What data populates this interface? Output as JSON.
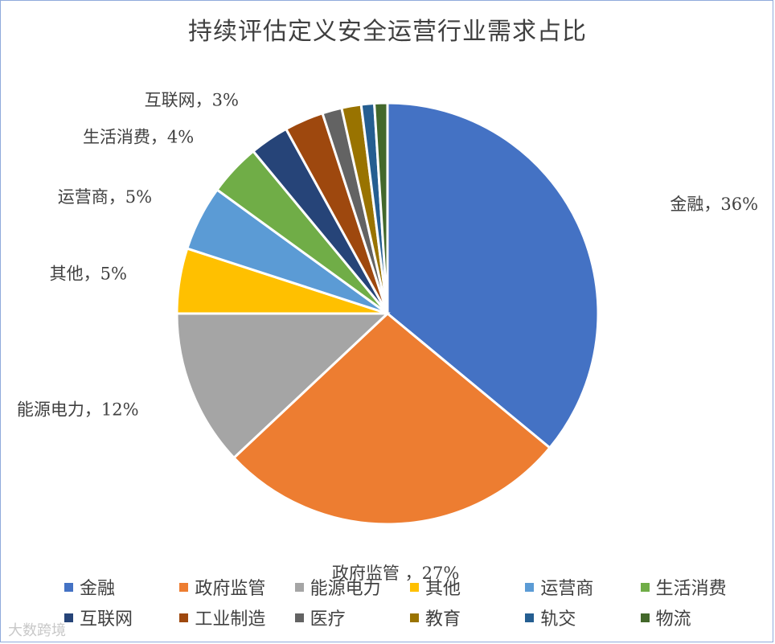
{
  "chart_data": {
    "type": "pie",
    "title": "持续评估定义安全运营行业需求占比",
    "categories": [
      "金融",
      "政府监管",
      "能源电力",
      "其他",
      "运营商",
      "生活消费",
      "互联网",
      "工业制造",
      "医疗",
      "教育",
      "轨交",
      "物流"
    ],
    "values": [
      36,
      27,
      12,
      5,
      5,
      4,
      3,
      3,
      1.5,
      1.5,
      1,
      1
    ],
    "colors": [
      "#4472c4",
      "#ed7d31",
      "#a5a5a5",
      "#ffc000",
      "#5b9bd5",
      "#70ad47",
      "#264478",
      "#9e480e",
      "#636363",
      "#997300",
      "#255e91",
      "#43682b"
    ],
    "data_labels": [
      {
        "index": 0,
        "text": "金融，36%",
        "color": "#c00000"
      },
      {
        "index": 1,
        "text": "政府监管 ，27%"
      },
      {
        "index": 2,
        "text": "能源电力，12%"
      },
      {
        "index": 3,
        "text": "其他，5%"
      },
      {
        "index": 4,
        "text": "运营商，5%"
      },
      {
        "index": 5,
        "text": "生活消费，4%"
      },
      {
        "index": 6,
        "text": "互联网，3%"
      }
    ],
    "legend_position": "bottom"
  },
  "watermark": "大数跨境"
}
